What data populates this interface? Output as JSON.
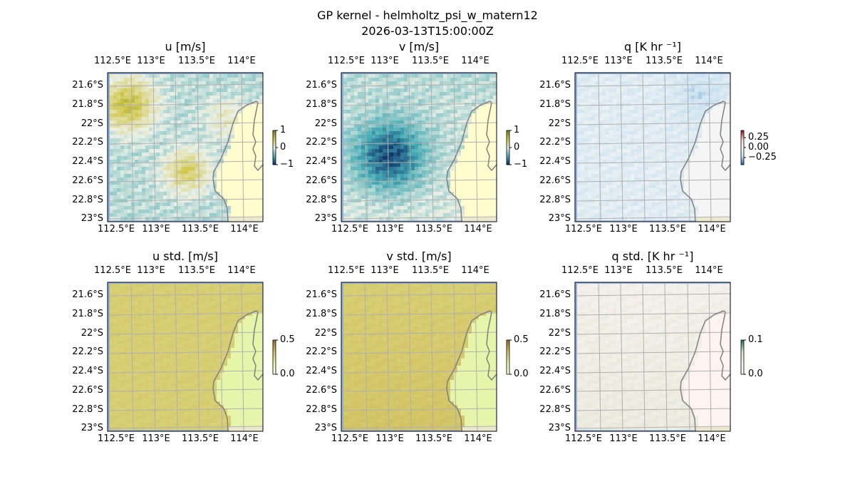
{
  "figure": {
    "title": "GP kernel - helmholtz_psi_w_matern12",
    "subtitle": "2026-03-13T15:00:00Z"
  },
  "chart_data": {
    "type": "heatmap",
    "lon_ticks": [
      "112.5°E",
      "113°E",
      "113.5°E",
      "114°E"
    ],
    "lat_ticks": [
      "21.6°S",
      "21.8°S",
      "22°S",
      "22.2°S",
      "22.4°S",
      "22.6°S",
      "22.8°S",
      "23°S"
    ],
    "panels": [
      {
        "title": "u [m/s]",
        "cbar_ticks": [
          "1",
          "0",
          "−1"
        ],
        "range": [
          -1,
          1
        ],
        "field": "u"
      },
      {
        "title": "v [m/s]",
        "cbar_ticks": [
          "1",
          "0",
          "−1"
        ],
        "range": [
          -1,
          1
        ],
        "field": "v"
      },
      {
        "title": "q [K hr ⁻¹]",
        "cbar_ticks": [
          "0.25",
          "0.00",
          "−0.25"
        ],
        "range": [
          -0.35,
          0.35
        ],
        "field": "q"
      },
      {
        "title": "u std. [m/s]",
        "cbar_ticks": [
          "0.5",
          "0.0"
        ],
        "range": [
          0,
          0.5
        ],
        "field": "ustd"
      },
      {
        "title": "v std. [m/s]",
        "cbar_ticks": [
          "0.5",
          "0.0"
        ],
        "range": [
          0,
          0.5
        ],
        "field": "vstd"
      },
      {
        "title": "q std. [K hr ⁻¹]",
        "cbar_ticks": [
          "0.1",
          "0.0"
        ],
        "range": [
          0,
          0.1
        ],
        "field": "qstd"
      }
    ]
  }
}
